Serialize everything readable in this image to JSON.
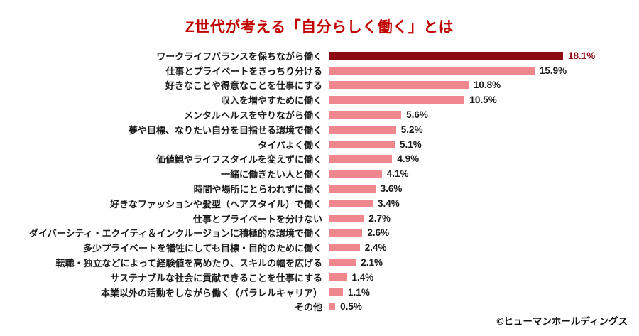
{
  "chart_data": {
    "type": "bar",
    "orientation": "horizontal",
    "title": "Z世代が考える「自分らしく働く」とは",
    "categories": [
      "ワークライフバランスを保ちながら働く",
      "仕事とプライベートをきっちり分ける",
      "好きなことや得意なことを仕事にする",
      "収入を増やすために働く",
      "メンタルヘルスを守りながら働く",
      "夢や目標、なりたい自分を目指せる環境で働く",
      "タイパよく働く",
      "価値観やライフスタイルを変えずに働く",
      "一緒に働きたい人と働く",
      "時間や場所にとらわれずに働く",
      "好きなファッションや髪型（ヘアスタイル）で働く",
      "仕事とプライベートを分けない",
      "ダイバーシティ・エクイティ＆インクルージョンに積極的な環境で働く",
      "多少プライベートを犠牲にしても目標・目的のために働く",
      "転職・独立などによって経験値を高めたり、スキルの幅を広げる",
      "サステナブルな社会に貢献できることを仕事にする",
      "本業以外の活動をしながら働く（パラレルキャリア）",
      "その他"
    ],
    "values": [
      18.1,
      15.9,
      10.8,
      10.5,
      5.6,
      5.2,
      5.1,
      4.9,
      4.1,
      3.6,
      3.4,
      2.7,
      2.6,
      2.4,
      2.1,
      1.4,
      1.1,
      0.5
    ],
    "value_labels": [
      "18.1%",
      "15.9%",
      "10.8%",
      "10.5%",
      "5.6%",
      "5.2%",
      "5.1%",
      "4.9%",
      "4.1%",
      "3.6%",
      "3.4%",
      "2.7%",
      "2.6%",
      "2.4%",
      "2.1%",
      "1.4%",
      "1.1%",
      "0.5%"
    ],
    "unit": "%",
    "xlim": [
      0,
      18.1
    ],
    "grid": false,
    "legend": false,
    "highlight_index": 0,
    "colors": {
      "title": "#c00000",
      "bar": "#f0878f",
      "highlight_bar": "#8b0a14",
      "label_text": "#1a1a1a",
      "value_text": "#1a1a1a",
      "highlight_value_text": "#8b0a14"
    }
  },
  "footer": {
    "copyright": "©ヒューマンホールディングス"
  }
}
